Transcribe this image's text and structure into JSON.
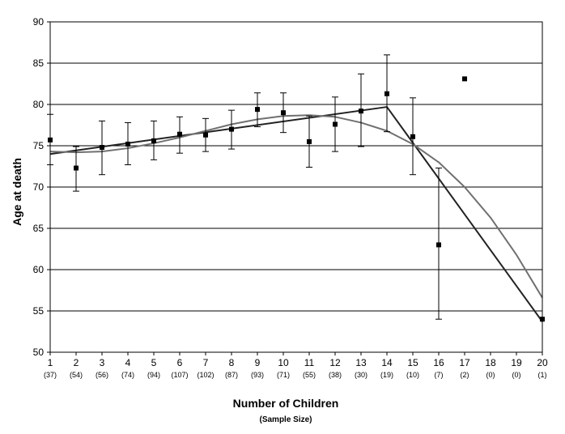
{
  "chart_data": {
    "type": "scatter",
    "ylabel": "Age at death",
    "xlabel": "Number of Children",
    "xlabel_sub": "(Sample Size)",
    "ylim": [
      50,
      90
    ],
    "yticks": [
      50,
      55,
      60,
      65,
      70,
      75,
      80,
      85,
      90
    ],
    "grid": "horizontal",
    "categories": [
      "1",
      "2",
      "3",
      "4",
      "5",
      "6",
      "7",
      "8",
      "9",
      "10",
      "11",
      "12",
      "13",
      "14",
      "15",
      "16",
      "17",
      "18",
      "19",
      "20"
    ],
    "sample_sizes": [
      "(37)",
      "(54)",
      "(56)",
      "(74)",
      "(94)",
      "(107)",
      "(102)",
      "(87)",
      "(93)",
      "(71)",
      "(55)",
      "(38)",
      "(30)",
      "(19)",
      "(10)",
      "(7)",
      "(2)",
      "(0)",
      "(0)",
      "(1)"
    ],
    "points": [
      {
        "x": 1,
        "y": 75.7,
        "err_low": 72.7,
        "err_high": 78.8
      },
      {
        "x": 2,
        "y": 72.3,
        "err_low": 69.5,
        "err_high": 74.9
      },
      {
        "x": 3,
        "y": 74.8,
        "err_low": 71.5,
        "err_high": 78.0
      },
      {
        "x": 4,
        "y": 75.2,
        "err_low": 72.7,
        "err_high": 77.8
      },
      {
        "x": 5,
        "y": 75.6,
        "err_low": 73.3,
        "err_high": 78.0
      },
      {
        "x": 6,
        "y": 76.4,
        "err_low": 74.1,
        "err_high": 78.5
      },
      {
        "x": 7,
        "y": 76.3,
        "err_low": 74.3,
        "err_high": 78.3
      },
      {
        "x": 8,
        "y": 77.0,
        "err_low": 74.6,
        "err_high": 79.3
      },
      {
        "x": 9,
        "y": 79.4,
        "err_low": 77.3,
        "err_high": 81.4
      },
      {
        "x": 10,
        "y": 79.0,
        "err_low": 76.6,
        "err_high": 81.4
      },
      {
        "x": 11,
        "y": 75.5,
        "err_low": 72.4,
        "err_high": 78.6
      },
      {
        "x": 12,
        "y": 77.6,
        "err_low": 74.3,
        "err_high": 80.9
      },
      {
        "x": 13,
        "y": 79.2,
        "err_low": 74.9,
        "err_high": 83.7
      },
      {
        "x": 14,
        "y": 81.3,
        "err_low": 76.7,
        "err_high": 86.0
      },
      {
        "x": 15,
        "y": 76.1,
        "err_low": 71.5,
        "err_high": 80.8
      },
      {
        "x": 16,
        "y": 63.0,
        "err_low": 54.0,
        "err_high": 72.3
      },
      {
        "x": 17,
        "y": 83.1
      },
      {
        "x": 20,
        "y": 54.0
      }
    ],
    "series": [
      {
        "kind": "piecewise-linear",
        "color": "#222222",
        "x": [
          1,
          14,
          20
        ],
        "y": [
          74.0,
          79.7,
          53.7
        ]
      },
      {
        "kind": "curve",
        "color": "#707070",
        "x": [
          1,
          2,
          3,
          4,
          5,
          6,
          7,
          8,
          9,
          10,
          11,
          12,
          13,
          14,
          15,
          16,
          17,
          18,
          19,
          20
        ],
        "y": [
          74.3,
          74.2,
          74.3,
          74.7,
          75.3,
          76.0,
          76.8,
          77.6,
          78.2,
          78.6,
          78.7,
          78.5,
          77.8,
          76.8,
          75.2,
          73.0,
          70.0,
          66.3,
          61.8,
          56.6
        ]
      }
    ]
  }
}
